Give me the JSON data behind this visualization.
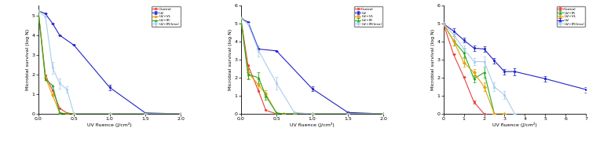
{
  "plots": [
    {
      "xlabel": "UV fluence (J/cm²)",
      "ylabel": "Microbial survival (log N)",
      "xlim": [
        0,
        2.0
      ],
      "ylim": [
        0,
        5.5
      ],
      "xticks": [
        0.0,
        0.5,
        1.0,
        1.5,
        2.0
      ],
      "yticks": [
        0.0,
        1.0,
        2.0,
        3.0,
        4.0,
        5.0
      ],
      "series": [
        {
          "label": "Control",
          "color": "#e84040",
          "marker": "s",
          "x": [
            0.0,
            0.1,
            0.2,
            0.3,
            0.4,
            0.5,
            1.0,
            1.5,
            2.0
          ],
          "y": [
            5.25,
            1.95,
            1.2,
            0.28,
            0.05,
            0.0,
            0.0,
            0.0,
            0.0
          ],
          "yerr": [
            0.0,
            0.0,
            0.0,
            0.0,
            0.0,
            0.0,
            0.0,
            0.0,
            0.0
          ]
        },
        {
          "label": "UV",
          "color": "#2222cc",
          "marker": "s",
          "x": [
            0.0,
            0.1,
            0.2,
            0.3,
            0.5,
            1.0,
            1.5,
            2.0
          ],
          "y": [
            5.25,
            5.1,
            4.6,
            4.0,
            3.5,
            1.35,
            0.05,
            0.0
          ],
          "yerr": [
            0.0,
            0.0,
            0.0,
            0.0,
            0.0,
            0.15,
            0.0,
            0.0
          ]
        },
        {
          "label": "UV+VL",
          "color": "#e8a000",
          "marker": "D",
          "x": [
            0.0,
            0.1,
            0.2,
            0.3,
            0.4,
            0.5,
            1.0,
            1.5,
            2.0
          ],
          "y": [
            5.25,
            1.85,
            0.95,
            0.05,
            0.0,
            0.0,
            0.0,
            0.0,
            0.0
          ],
          "yerr": [
            0.0,
            0.0,
            0.0,
            0.0,
            0.0,
            0.0,
            0.0,
            0.0,
            0.0
          ]
        },
        {
          "label": "UV+IR",
          "color": "#22aa22",
          "marker": "^",
          "x": [
            0.0,
            0.1,
            0.2,
            0.3,
            0.4,
            0.5,
            1.0,
            1.5,
            2.0
          ],
          "y": [
            5.25,
            1.75,
            1.45,
            0.05,
            0.0,
            0.0,
            0.0,
            0.0,
            0.0
          ],
          "yerr": [
            0.0,
            0.0,
            0.0,
            0.0,
            0.0,
            0.0,
            0.0,
            0.0,
            0.0
          ]
        },
        {
          "label": "UV+IR(less)",
          "color": "#aaccee",
          "marker": "s",
          "x": [
            0.0,
            0.1,
            0.2,
            0.3,
            0.4,
            0.5,
            1.0,
            1.5,
            2.0
          ],
          "y": [
            5.25,
            4.95,
            2.35,
            1.55,
            1.25,
            0.0,
            0.0,
            0.0,
            0.0
          ],
          "yerr": [
            0.0,
            0.0,
            0.3,
            0.25,
            0.15,
            0.0,
            0.0,
            0.0,
            0.0
          ]
        }
      ]
    },
    {
      "xlabel": "UV fluence (J/cm²)",
      "ylabel": "Microbial survival (log N)",
      "xlim": [
        0,
        2.0
      ],
      "ylim": [
        0,
        6.0
      ],
      "xticks": [
        0.0,
        0.5,
        1.0,
        1.5,
        2.0
      ],
      "yticks": [
        0.0,
        1.0,
        2.0,
        3.0,
        4.0,
        5.0,
        6.0
      ],
      "series": [
        {
          "label": "Control",
          "color": "#e84040",
          "marker": "s",
          "x": [
            0.0,
            0.1,
            0.25,
            0.35,
            0.5,
            0.6,
            0.75,
            1.0,
            1.5,
            2.0
          ],
          "y": [
            5.3,
            2.7,
            1.25,
            0.2,
            0.0,
            0.0,
            0.0,
            0.0,
            0.0,
            0.0
          ],
          "yerr": [
            0.0,
            0.0,
            0.0,
            0.0,
            0.0,
            0.0,
            0.0,
            0.0,
            0.0,
            0.0
          ]
        },
        {
          "label": "UV",
          "color": "#2222cc",
          "marker": "s",
          "x": [
            0.0,
            0.1,
            0.25,
            0.5,
            1.0,
            1.5,
            2.0
          ],
          "y": [
            5.3,
            5.1,
            3.6,
            3.5,
            1.4,
            0.08,
            0.0
          ],
          "yerr": [
            0.0,
            0.0,
            0.0,
            0.0,
            0.15,
            0.0,
            0.0
          ]
        },
        {
          "label": "UV+VL",
          "color": "#e8a000",
          "marker": "D",
          "x": [
            0.0,
            0.1,
            0.25,
            0.35,
            0.5,
            0.6,
            0.75,
            1.0,
            1.5,
            2.0
          ],
          "y": [
            5.3,
            2.3,
            1.6,
            1.1,
            0.05,
            0.0,
            0.0,
            0.0,
            0.0,
            0.0
          ],
          "yerr": [
            0.0,
            0.35,
            0.3,
            0.2,
            0.0,
            0.0,
            0.0,
            0.0,
            0.0,
            0.0
          ]
        },
        {
          "label": "UV+IR",
          "color": "#22aa22",
          "marker": "^",
          "x": [
            0.0,
            0.1,
            0.25,
            0.35,
            0.5,
            0.6,
            0.75,
            1.0,
            1.5,
            2.0
          ],
          "y": [
            5.3,
            2.2,
            2.0,
            1.0,
            0.05,
            0.0,
            0.0,
            0.0,
            0.0,
            0.0
          ],
          "yerr": [
            0.0,
            0.3,
            0.3,
            0.2,
            0.0,
            0.0,
            0.0,
            0.0,
            0.0,
            0.0
          ]
        },
        {
          "label": "UV+IR(less)",
          "color": "#aaccee",
          "marker": "s",
          "x": [
            0.0,
            0.1,
            0.25,
            0.5,
            0.75,
            1.0,
            1.5,
            2.0
          ],
          "y": [
            5.3,
            5.0,
            3.5,
            1.7,
            0.08,
            0.0,
            0.0,
            0.0
          ],
          "yerr": [
            0.0,
            0.0,
            0.3,
            0.35,
            0.0,
            0.0,
            0.0,
            0.0
          ]
        }
      ]
    },
    {
      "xlabel": "UV fluence (J/cm²)",
      "ylabel": "Microbial survival (log N)",
      "xlim": [
        0,
        7.0
      ],
      "ylim": [
        0,
        6.0
      ],
      "xticks": [
        0.0,
        1.0,
        2.0,
        3.0,
        4.0,
        5.0,
        6.0,
        7.0
      ],
      "yticks": [
        0.0,
        1.0,
        2.0,
        3.0,
        4.0,
        5.0,
        6.0
      ],
      "series": [
        {
          "label": "Control",
          "color": "#e84040",
          "marker": "s",
          "x": [
            0.0,
            0.5,
            1.0,
            1.5,
            2.0
          ],
          "y": [
            5.0,
            3.3,
            2.05,
            0.65,
            0.0
          ],
          "yerr": [
            0.0,
            0.0,
            0.0,
            0.1,
            0.0
          ]
        },
        {
          "label": "UV+IR",
          "color": "#22aa22",
          "marker": "^",
          "x": [
            0.0,
            0.5,
            1.0,
            1.5,
            2.0,
            2.5
          ],
          "y": [
            5.0,
            4.05,
            3.4,
            1.95,
            2.3,
            0.0
          ],
          "yerr": [
            0.0,
            0.25,
            0.25,
            0.2,
            0.3,
            0.0
          ]
        },
        {
          "label": "UV+VL",
          "color": "#e8a000",
          "marker": "D",
          "x": [
            0.0,
            0.5,
            1.0,
            1.5,
            2.0,
            2.5,
            3.0
          ],
          "y": [
            5.0,
            4.05,
            2.85,
            2.3,
            1.5,
            0.0,
            0.0
          ],
          "yerr": [
            0.0,
            0.25,
            0.25,
            0.2,
            0.25,
            0.0,
            0.0
          ]
        },
        {
          "label": "UV",
          "color": "#2222cc",
          "marker": "s",
          "x": [
            0.0,
            0.5,
            1.0,
            1.5,
            2.0,
            2.5,
            3.0,
            3.5,
            5.0,
            7.0
          ],
          "y": [
            5.0,
            4.6,
            4.1,
            3.65,
            3.6,
            2.95,
            2.35,
            2.35,
            1.95,
            1.35
          ],
          "yerr": [
            0.0,
            0.15,
            0.15,
            0.15,
            0.15,
            0.15,
            0.15,
            0.2,
            0.15,
            0.15
          ]
        },
        {
          "label": "UV+IR(less)",
          "color": "#aaccee",
          "marker": "s",
          "x": [
            0.0,
            0.5,
            1.0,
            1.5,
            2.0,
            2.5,
            3.0,
            3.5
          ],
          "y": [
            5.0,
            4.4,
            3.6,
            2.9,
            2.9,
            1.5,
            1.05,
            0.0
          ],
          "yerr": [
            0.0,
            0.2,
            0.2,
            0.2,
            0.3,
            0.25,
            0.2,
            0.0
          ]
        }
      ]
    }
  ]
}
